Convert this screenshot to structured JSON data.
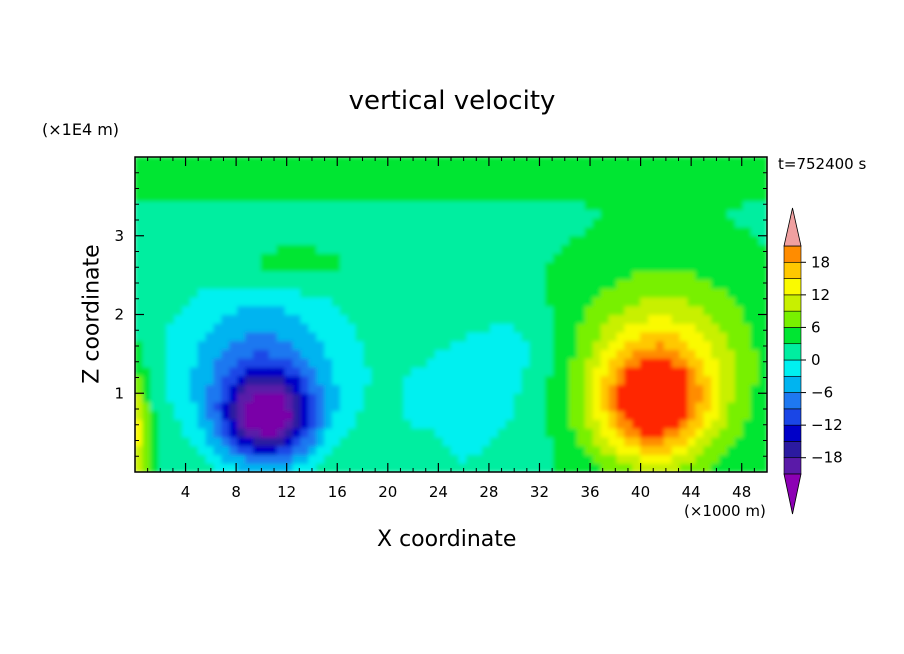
{
  "chart_data": {
    "type": "heatmap",
    "title": "vertical velocity",
    "xlabel": "X coordinate",
    "ylabel": "Z coordinate",
    "x_unit": "(×1000 m)",
    "z_unit": "(×1E4 m)",
    "time_label": "t=752400 s",
    "xlim": [
      0,
      50
    ],
    "zlim": [
      0,
      4
    ],
    "x_ticks": [
      4,
      8,
      12,
      16,
      20,
      24,
      28,
      32,
      36,
      40,
      44,
      48
    ],
    "z_ticks": [
      1,
      2,
      3
    ],
    "colorbar": {
      "levels": [
        -21,
        -18,
        -15,
        -12,
        -9,
        -6,
        -3,
        0,
        3,
        6,
        9,
        12,
        15,
        18,
        21
      ],
      "tick_values": [
        -18,
        -12,
        -6,
        0,
        6,
        12,
        18
      ],
      "colors": [
        "#7a00a8",
        "#5a1aa8",
        "#2b1aa0",
        "#0000c8",
        "#1a46e6",
        "#1e78f0",
        "#00b4f0",
        "#00f0f0",
        "#00eea0",
        "#00e632",
        "#78f000",
        "#c8f000",
        "#fafa00",
        "#ffc800",
        "#ff8c00",
        "#ff5a00",
        "#ff2800"
      ],
      "under_color": "#8c00b4",
      "over_color": "#f0a0a0"
    },
    "features": [
      {
        "name": "downdraft core",
        "x": 11,
        "z": 0.7,
        "value": -21
      },
      {
        "name": "updraft core",
        "x": 41,
        "z": 0.8,
        "value": 18
      },
      {
        "name": "left-edge updraft",
        "x": 0.5,
        "z": 0.5,
        "value": 12
      }
    ]
  }
}
